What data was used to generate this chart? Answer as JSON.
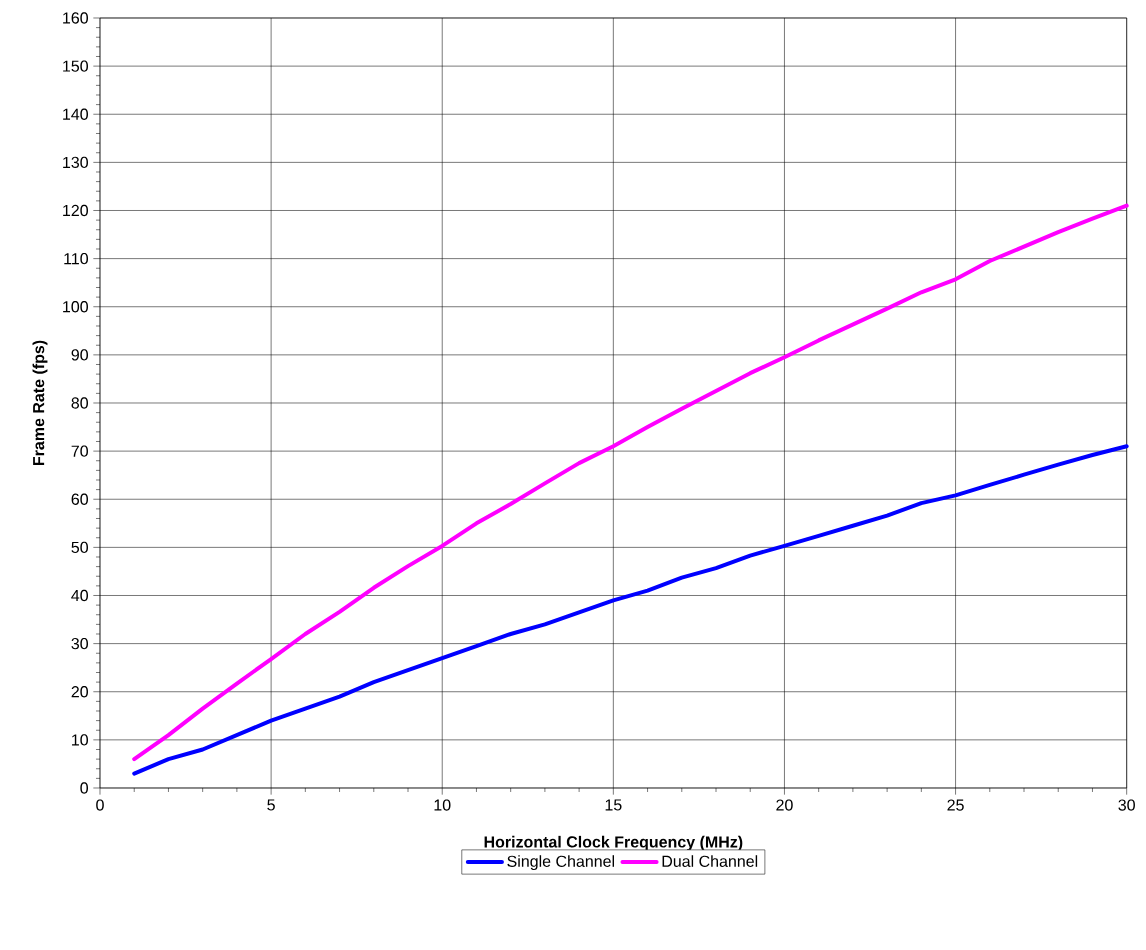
{
  "chart_data": {
    "type": "line",
    "xlabel": "Horizontal Clock Frequency (MHz)",
    "ylabel": "Frame Rate (fps)",
    "x": [
      1,
      2,
      3,
      4,
      5,
      6,
      7,
      8,
      9,
      10,
      11,
      12,
      13,
      14,
      15,
      16,
      17,
      18,
      19,
      20,
      21,
      22,
      23,
      24,
      25,
      26,
      27,
      28,
      29,
      30
    ],
    "series": [
      {
        "name": "Single Channel",
        "color": "#0000ff",
        "values": [
          3,
          6,
          8,
          11,
          14,
          16.5,
          19,
          22,
          24.5,
          27,
          29.5,
          32,
          34,
          36.5,
          39,
          41,
          43.7,
          45.7,
          48.3,
          50.3,
          52.4,
          54.5,
          56.6,
          59.2,
          60.8,
          63,
          65.1,
          67.2,
          69.2,
          71
        ]
      },
      {
        "name": "Dual Channel",
        "color": "#ff00ff",
        "values": [
          6,
          11,
          16.5,
          21.7,
          26.8,
          32,
          36.6,
          41.6,
          46.1,
          50.3,
          55,
          59,
          63.3,
          67.5,
          71,
          75,
          78.8,
          82.5,
          86.2,
          89.5,
          93,
          96.3,
          99.6,
          103,
          105.7,
          109.5,
          112.5,
          115.5,
          118.3,
          121
        ]
      }
    ],
    "xlim": [
      0,
      30
    ],
    "xticks": [
      0,
      5,
      10,
      15,
      20,
      25,
      30
    ],
    "ylim": [
      0,
      160
    ],
    "yticks": [
      0,
      10,
      20,
      30,
      40,
      50,
      60,
      70,
      80,
      90,
      100,
      110,
      120,
      130,
      140,
      150,
      160
    ],
    "grid": true,
    "legend": "bottom",
    "marker": "none",
    "line_style": "solid"
  }
}
